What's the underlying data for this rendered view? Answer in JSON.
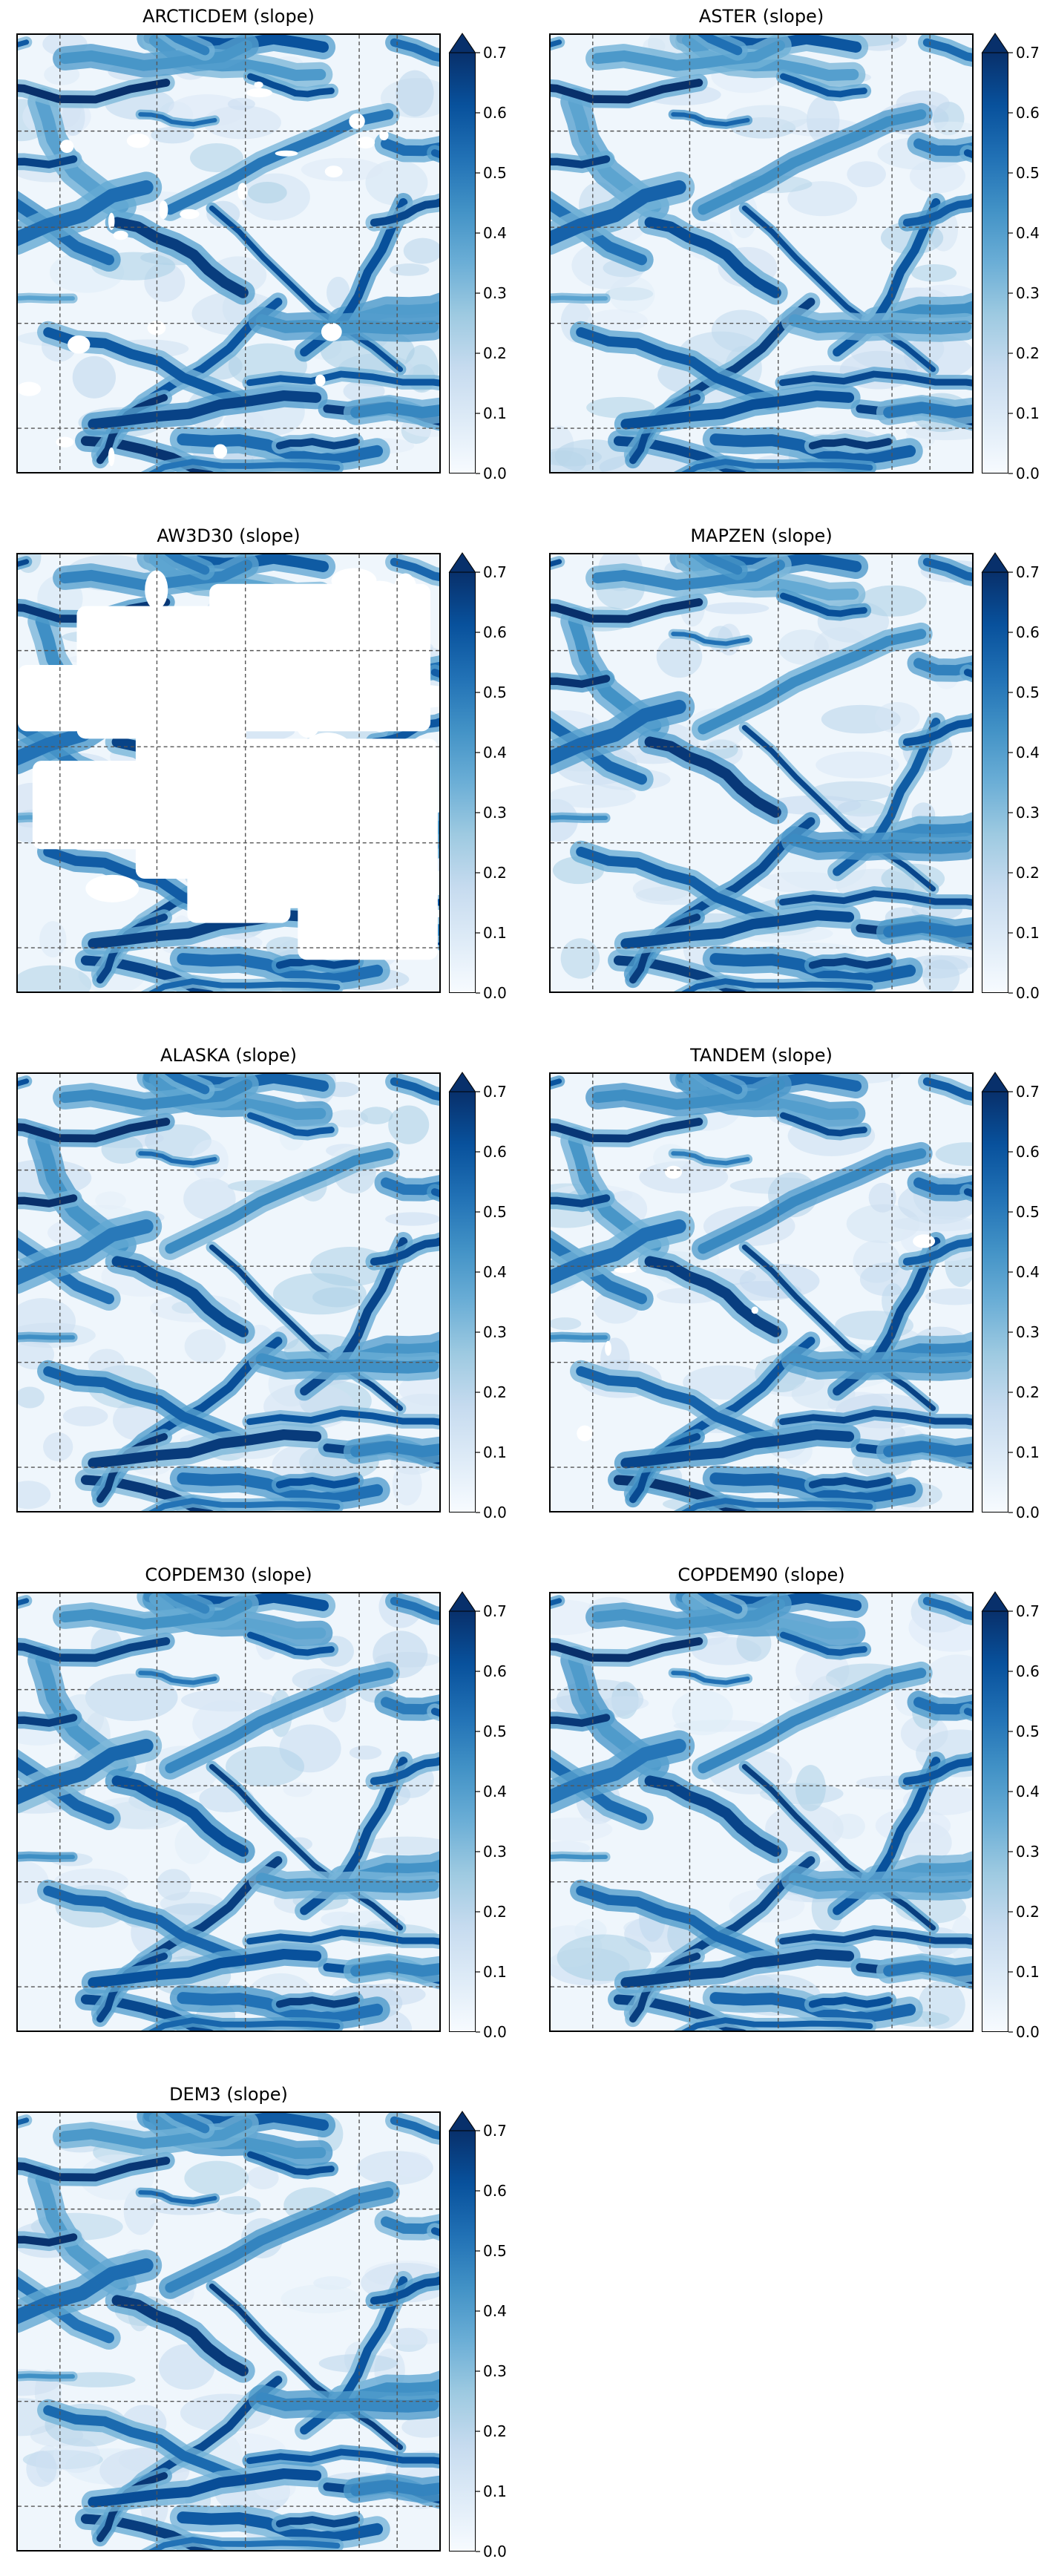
{
  "colormap": {
    "name": "Blues",
    "stops": [
      "#f7fbff",
      "#deebf7",
      "#c6dbef",
      "#9ecae1",
      "#6baed6",
      "#4292c6",
      "#2171b5",
      "#08519c",
      "#08306b"
    ],
    "void_color": "#ffffff",
    "grid_color": "#555555"
  },
  "chart_data": [
    {
      "type": "heatmap",
      "title": "ARCTICDEM (slope)",
      "colorbar": {
        "vmin": 0.0,
        "vmax": 0.7,
        "extend": "max",
        "ticks": [
          "0.0",
          "0.1",
          "0.2",
          "0.3",
          "0.4",
          "0.5",
          "0.6",
          "0.7"
        ]
      },
      "grid": true,
      "voids": "scattered"
    },
    {
      "type": "heatmap",
      "title": "ASTER (slope)",
      "colorbar": {
        "vmin": 0.0,
        "vmax": 0.7,
        "extend": "max",
        "ticks": [
          "0.0",
          "0.1",
          "0.2",
          "0.3",
          "0.4",
          "0.5",
          "0.6",
          "0.7"
        ]
      },
      "grid": true,
      "voids": "none"
    },
    {
      "type": "heatmap",
      "title": "AW3D30 (slope)",
      "colorbar": {
        "vmin": 0.0,
        "vmax": 0.7,
        "extend": "max",
        "ticks": [
          "0.0",
          "0.1",
          "0.2",
          "0.3",
          "0.4",
          "0.5",
          "0.6",
          "0.7"
        ]
      },
      "grid": true,
      "voids": "extensive"
    },
    {
      "type": "heatmap",
      "title": "MAPZEN (slope)",
      "colorbar": {
        "vmin": 0.0,
        "vmax": 0.7,
        "extend": "max",
        "ticks": [
          "0.0",
          "0.1",
          "0.2",
          "0.3",
          "0.4",
          "0.5",
          "0.6",
          "0.7"
        ]
      },
      "grid": true,
      "voids": "none"
    },
    {
      "type": "heatmap",
      "title": "ALASKA (slope)",
      "colorbar": {
        "vmin": 0.0,
        "vmax": 0.7,
        "extend": "max",
        "ticks": [
          "0.0",
          "0.1",
          "0.2",
          "0.3",
          "0.4",
          "0.5",
          "0.6",
          "0.7"
        ]
      },
      "grid": true,
      "voids": "none"
    },
    {
      "type": "heatmap",
      "title": "TANDEM (slope)",
      "colorbar": {
        "vmin": 0.0,
        "vmax": 0.7,
        "extend": "max",
        "ticks": [
          "0.0",
          "0.1",
          "0.2",
          "0.3",
          "0.4",
          "0.5",
          "0.6",
          "0.7"
        ]
      },
      "grid": true,
      "voids": "few"
    },
    {
      "type": "heatmap",
      "title": "COPDEM30 (slope)",
      "colorbar": {
        "vmin": 0.0,
        "vmax": 0.7,
        "extend": "max",
        "ticks": [
          "0.0",
          "0.1",
          "0.2",
          "0.3",
          "0.4",
          "0.5",
          "0.6",
          "0.7"
        ]
      },
      "grid": true,
      "voids": "none"
    },
    {
      "type": "heatmap",
      "title": "COPDEM90 (slope)",
      "colorbar": {
        "vmin": 0.0,
        "vmax": 0.7,
        "extend": "max",
        "ticks": [
          "0.0",
          "0.1",
          "0.2",
          "0.3",
          "0.4",
          "0.5",
          "0.6",
          "0.7"
        ]
      },
      "grid": true,
      "voids": "none"
    },
    {
      "type": "heatmap",
      "title": "DEM3 (slope)",
      "colorbar": {
        "vmin": 0.0,
        "vmax": 0.7,
        "extend": "max",
        "ticks": [
          "0.0",
          "0.1",
          "0.2",
          "0.3",
          "0.4",
          "0.5",
          "0.6",
          "0.7"
        ]
      },
      "grid": true,
      "voids": "none"
    }
  ]
}
